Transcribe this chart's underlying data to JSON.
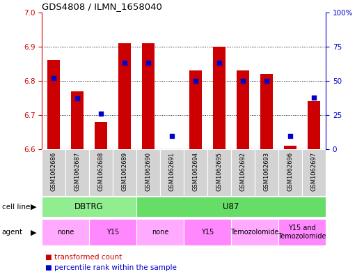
{
  "title": "GDS4808 / ILMN_1658040",
  "samples": [
    "GSM1062686",
    "GSM1062687",
    "GSM1062688",
    "GSM1062689",
    "GSM1062690",
    "GSM1062691",
    "GSM1062694",
    "GSM1062695",
    "GSM1062692",
    "GSM1062693",
    "GSM1062696",
    "GSM1062697"
  ],
  "red_values": [
    6.86,
    6.77,
    6.68,
    6.91,
    6.91,
    6.6,
    6.83,
    6.9,
    6.83,
    6.82,
    6.61,
    6.74
  ],
  "blue_values_pct": [
    52,
    37,
    26,
    63,
    63,
    10,
    50,
    63,
    50,
    50,
    10,
    38
  ],
  "ylim_left": [
    6.6,
    7.0
  ],
  "ylim_right": [
    0,
    100
  ],
  "yticks_left": [
    6.6,
    6.7,
    6.8,
    6.9,
    7.0
  ],
  "ytick_labels_right": [
    "0",
    "25",
    "50",
    "75",
    "100%"
  ],
  "ytick_vals_right": [
    0,
    25,
    50,
    75,
    100
  ],
  "cell_line_groups": [
    {
      "label": "DBTRG",
      "start": 0,
      "end": 3,
      "color": "#90EE90"
    },
    {
      "label": "U87",
      "start": 4,
      "end": 11,
      "color": "#66DD66"
    }
  ],
  "agent_spans": [
    {
      "label": "none",
      "start": 0,
      "end": 1,
      "color": "#FFAAFF"
    },
    {
      "label": "Y15",
      "start": 2,
      "end": 3,
      "color": "#FF88FF"
    },
    {
      "label": "none",
      "start": 4,
      "end": 5,
      "color": "#FFAAFF"
    },
    {
      "label": "Y15",
      "start": 6,
      "end": 7,
      "color": "#FF88FF"
    },
    {
      "label": "Temozolomide",
      "start": 8,
      "end": 9,
      "color": "#FFAAFF"
    },
    {
      "label": "Y15 and\nTemozolomide",
      "start": 10,
      "end": 11,
      "color": "#FF88FF"
    }
  ],
  "bar_color": "#CC0000",
  "dot_color": "#0000CC",
  "bar_width": 0.55,
  "base_value": 6.6,
  "tick_color_left": "#CC0000",
  "tick_color_right": "#0000CC",
  "sample_bg": "#D3D3D3",
  "grid_dotted_color": "#333333"
}
